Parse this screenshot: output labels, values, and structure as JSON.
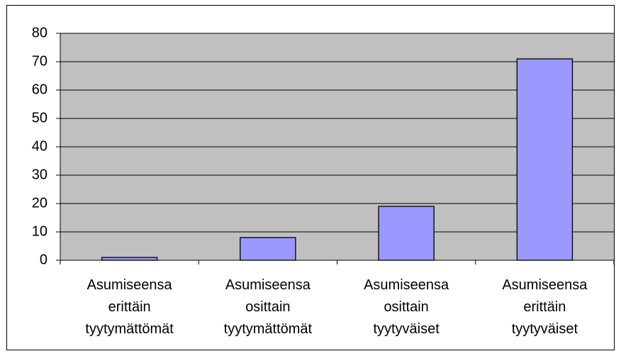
{
  "chart_data": {
    "type": "bar",
    "categories": [
      "Asumiseensa erittäin tyytymättömät",
      "Asumiseensa osittain tyytymättömät",
      "Asumiseensa osittain tyytyväiset",
      "Asumiseensa erittäin tyytyväiset"
    ],
    "values": [
      1,
      8,
      19,
      71
    ],
    "color": "#9999ff",
    "ylim": [
      0,
      80
    ],
    "yticks": [
      0,
      10,
      20,
      30,
      40,
      50,
      60,
      70,
      80
    ],
    "grid": true
  }
}
